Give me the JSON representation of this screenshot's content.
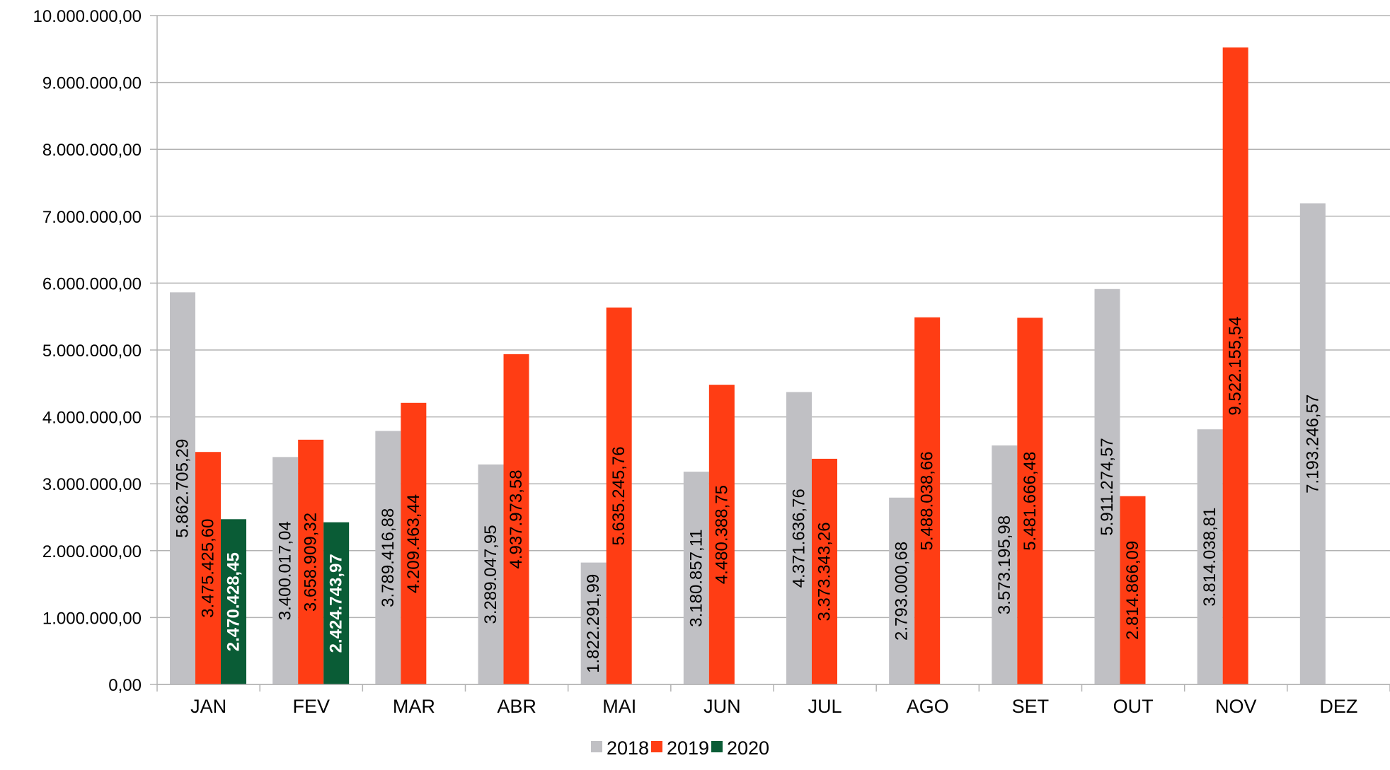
{
  "chart_data": {
    "type": "bar",
    "categories": [
      "JAN",
      "FEV",
      "MAR",
      "ABR",
      "MAI",
      "JUN",
      "JUL",
      "AGO",
      "SET",
      "OUT",
      "NOV",
      "DEZ"
    ],
    "series": [
      {
        "name": "2018",
        "color": "#c0c0c4",
        "values": [
          5862705.29,
          3400017.04,
          3789416.88,
          3289047.95,
          1822291.99,
          3180857.11,
          4371636.76,
          2793000.68,
          3573195.98,
          5911274.57,
          3814038.81,
          7193246.57
        ],
        "labels": [
          "5.862.705,29",
          "3.400.017,04",
          "3.789.416,88",
          "3.289.047,95",
          "1.822.291,99",
          "3.180.857,11",
          "4.371.636,76",
          "2.793.000,68",
          "3.573.195,98",
          "5.911.274,57",
          "3.814.038,81",
          "7.193.246,57"
        ]
      },
      {
        "name": "2019",
        "color": "#ff3d14",
        "values": [
          3475425.6,
          3658909.32,
          4209463.44,
          4937973.58,
          5635245.76,
          4480388.75,
          3373343.26,
          5488038.66,
          5481666.48,
          2814866.09,
          9522155.54,
          null
        ],
        "labels": [
          "3.475.425,60",
          "3.658.909,32",
          "4.209.463,44",
          "4.937.973,58",
          "5.635.245,76",
          "4.480.388,75",
          "3.373.343,26",
          "5.488.038,66",
          "5.481.666,48",
          "2.814.866,09",
          "9.522.155,54",
          null
        ]
      },
      {
        "name": "2020",
        "color": "#0a5c36",
        "values": [
          2470428.45,
          2424743.97,
          null,
          null,
          null,
          null,
          null,
          null,
          null,
          null,
          null,
          null
        ],
        "labels": [
          "2.470.428,45",
          "2.424.743,97",
          null,
          null,
          null,
          null,
          null,
          null,
          null,
          null,
          null,
          null
        ]
      }
    ],
    "y_ticks": [
      {
        "value": 0,
        "label": "0,00"
      },
      {
        "value": 1000000,
        "label": "1.000.000,00"
      },
      {
        "value": 2000000,
        "label": "2.000.000,00"
      },
      {
        "value": 3000000,
        "label": "3.000.000,00"
      },
      {
        "value": 4000000,
        "label": "4.000.000,00"
      },
      {
        "value": 5000000,
        "label": "5.000.000,00"
      },
      {
        "value": 6000000,
        "label": "6.000.000,00"
      },
      {
        "value": 7000000,
        "label": "7.000.000,00"
      },
      {
        "value": 8000000,
        "label": "8.000.000,00"
      },
      {
        "value": 9000000,
        "label": "9.000.000,00"
      },
      {
        "value": 10000000,
        "label": "10.000.000,00"
      }
    ],
    "ylim": [
      0,
      10000000
    ],
    "title": "",
    "xlabel": "",
    "ylabel": "",
    "grid": true,
    "legend_position": "bottom-center",
    "colors": {
      "grid": "#b3b3b3",
      "axis": "#b3b3b3",
      "label_dark": "#000000",
      "label_light": "#ffffff"
    }
  }
}
